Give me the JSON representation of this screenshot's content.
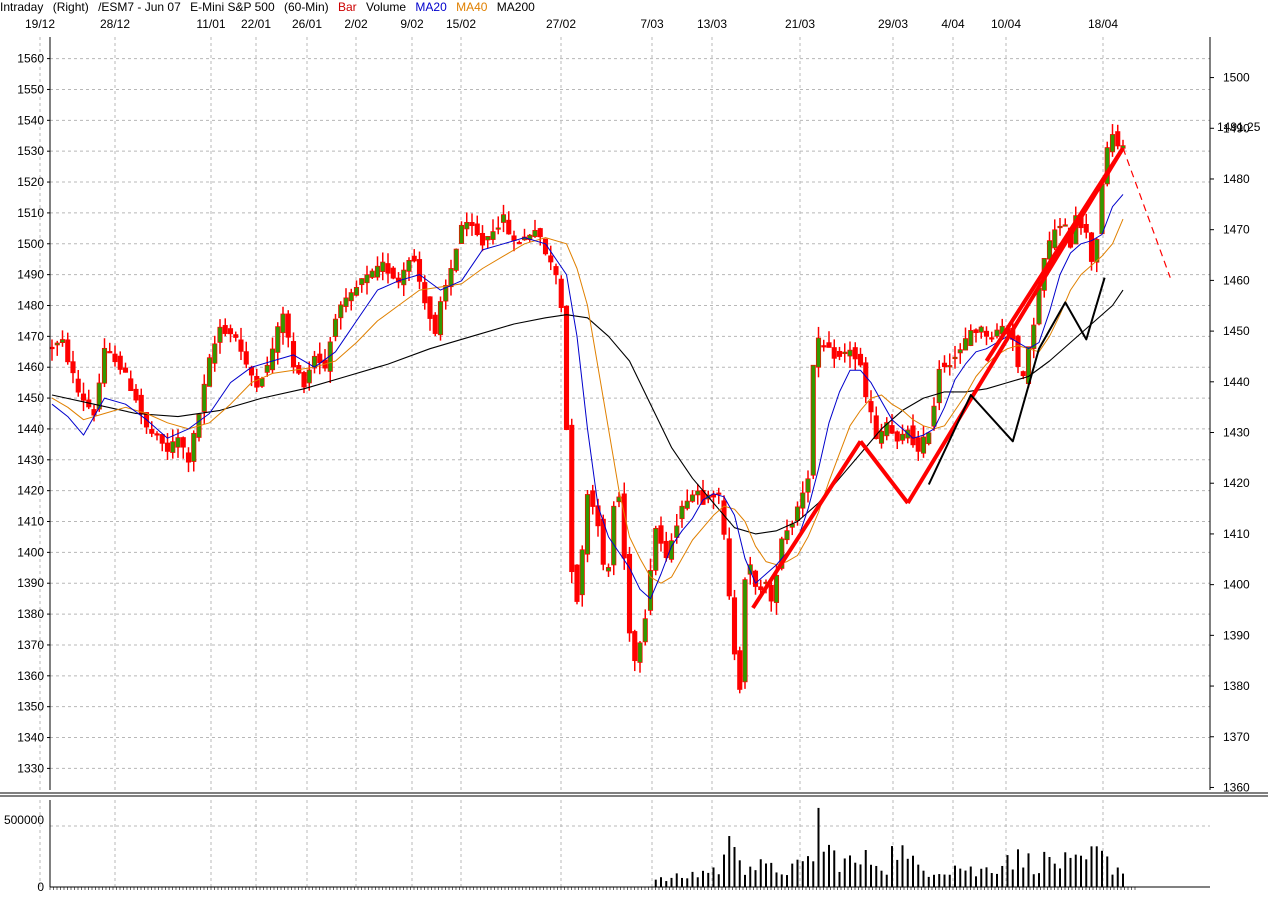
{
  "header": {
    "mode": "Intraday",
    "scale": "(Right)",
    "symbol": "/ESM7 - Jun 07",
    "name": "E-Mini S&P 500",
    "interval": "(60-Min)",
    "legend": [
      {
        "label": "Bar",
        "color": "#cc0000"
      },
      {
        "label": "Volume",
        "color": "#000000"
      },
      {
        "label": "MA20",
        "color": "#0000cc"
      },
      {
        "label": "MA40",
        "color": "#e08000"
      },
      {
        "label": "MA200",
        "color": "#000000"
      }
    ]
  },
  "chart_data": {
    "type": "candlestick",
    "date_labels": [
      "19/12",
      "28/12",
      "11/01",
      "22/01",
      "26/01",
      "2/02",
      "9/02",
      "15/02",
      "27/02",
      "7/03",
      "13/03",
      "21/03",
      "29/03",
      "4/04",
      "10/04",
      "18/04"
    ],
    "left_axis": {
      "ticks": [
        1560,
        1550,
        1540,
        1530,
        1520,
        1510,
        1500,
        1490,
        1480,
        1470,
        1460,
        1450,
        1440,
        1430,
        1420,
        1410,
        1400,
        1390,
        1380,
        1370,
        1360,
        1350,
        1340,
        1330
      ],
      "range": [
        1323,
        1567
      ]
    },
    "right_axis": {
      "ticks": [
        1500,
        1490,
        1480,
        1470,
        1460,
        1450,
        1440,
        1430,
        1420,
        1410,
        1400,
        1390,
        1380,
        1370,
        1360
      ],
      "range": [
        1359.5,
        1508
      ]
    },
    "last_price": "1491.25",
    "volume_axis": {
      "ticks": [
        "500000",
        "0"
      ],
      "max": 650000
    },
    "colors": {
      "up": "#339900",
      "down": "#ff0000",
      "ma20": "#0000cc",
      "ma40": "#e08000",
      "ma200": "#000000",
      "trend": "#ff0000",
      "pattern": "#000000",
      "grid": "#b8b8b8"
    },
    "price_path": [
      [
        0,
        1466
      ],
      [
        3,
        1468
      ],
      [
        6,
        1452
      ],
      [
        9,
        1445
      ],
      [
        11,
        1465
      ],
      [
        13,
        1463
      ],
      [
        15,
        1457
      ],
      [
        17,
        1450
      ],
      [
        19,
        1440
      ],
      [
        21,
        1437
      ],
      [
        23,
        1433
      ],
      [
        25,
        1437
      ],
      [
        27,
        1430
      ],
      [
        29,
        1445
      ],
      [
        31,
        1462
      ],
      [
        33,
        1473
      ],
      [
        36,
        1470
      ],
      [
        38,
        1460
      ],
      [
        40,
        1455
      ],
      [
        42,
        1460
      ],
      [
        45,
        1478
      ],
      [
        47,
        1460
      ],
      [
        49,
        1455
      ],
      [
        51,
        1464
      ],
      [
        53,
        1460
      ],
      [
        55,
        1477
      ],
      [
        58,
        1483
      ],
      [
        60,
        1488
      ],
      [
        62,
        1490
      ],
      [
        64,
        1493
      ],
      [
        67,
        1488
      ],
      [
        69,
        1496
      ],
      [
        70,
        1494
      ],
      [
        72,
        1482
      ],
      [
        74,
        1470
      ],
      [
        75,
        1480
      ],
      [
        77,
        1492
      ],
      [
        79,
        1506
      ],
      [
        81,
        1505
      ],
      [
        83,
        1500
      ],
      [
        85,
        1505
      ],
      [
        87,
        1508
      ],
      [
        89,
        1500
      ],
      [
        91,
        1502
      ],
      [
        93,
        1505
      ],
      [
        95,
        1497
      ],
      [
        97,
        1490
      ],
      [
        98,
        1480
      ],
      [
        99,
        1440
      ],
      [
        100,
        1395
      ],
      [
        101,
        1385
      ],
      [
        102,
        1400
      ],
      [
        103,
        1420
      ],
      [
        105,
        1410
      ],
      [
        106,
        1395
      ],
      [
        107,
        1395
      ],
      [
        108,
        1415
      ],
      [
        109,
        1418
      ],
      [
        110,
        1398
      ],
      [
        111,
        1375
      ],
      [
        112,
        1365
      ],
      [
        113,
        1372
      ],
      [
        114,
        1380
      ],
      [
        115,
        1395
      ],
      [
        116,
        1408
      ],
      [
        117,
        1403
      ],
      [
        118,
        1397
      ],
      [
        119,
        1405
      ],
      [
        120,
        1410
      ],
      [
        122,
        1418
      ],
      [
        124,
        1420
      ],
      [
        125,
        1417
      ],
      [
        126,
        1420
      ],
      [
        128,
        1418
      ],
      [
        129,
        1405
      ],
      [
        130,
        1385
      ],
      [
        131,
        1368
      ],
      [
        132,
        1357
      ],
      [
        133,
        1392
      ],
      [
        134,
        1395
      ],
      [
        135,
        1388
      ],
      [
        137,
        1390
      ],
      [
        138,
        1383
      ],
      [
        140,
        1405
      ],
      [
        142,
        1410
      ],
      [
        144,
        1420
      ],
      [
        145,
        1425
      ],
      [
        146,
        1460
      ],
      [
        147,
        1468
      ],
      [
        149,
        1465
      ],
      [
        151,
        1463
      ],
      [
        153,
        1466
      ],
      [
        155,
        1460
      ],
      [
        156,
        1450
      ],
      [
        157,
        1445
      ],
      [
        158,
        1436
      ],
      [
        160,
        1442
      ],
      [
        162,
        1435
      ],
      [
        164,
        1440
      ],
      [
        166,
        1432
      ],
      [
        168,
        1440
      ],
      [
        169,
        1448
      ],
      [
        170,
        1460
      ],
      [
        172,
        1462
      ],
      [
        174,
        1465
      ],
      [
        176,
        1472
      ],
      [
        178,
        1472
      ],
      [
        180,
        1470
      ],
      [
        182,
        1473
      ],
      [
        184,
        1470
      ],
      [
        185,
        1460
      ],
      [
        186,
        1456
      ],
      [
        188,
        1475
      ],
      [
        190,
        1495
      ],
      [
        192,
        1505
      ],
      [
        194,
        1505
      ],
      [
        195,
        1500
      ],
      [
        196,
        1510
      ],
      [
        198,
        1503
      ],
      [
        199,
        1495
      ],
      [
        200,
        1502
      ],
      [
        201,
        1520
      ],
      [
        202,
        1530
      ],
      [
        203,
        1535
      ],
      [
        204,
        1532
      ]
    ],
    "ma20_path": [
      [
        0,
        1448
      ],
      [
        3,
        1444
      ],
      [
        6,
        1438
      ],
      [
        10,
        1450
      ],
      [
        14,
        1448
      ],
      [
        18,
        1443
      ],
      [
        22,
        1437
      ],
      [
        26,
        1440
      ],
      [
        30,
        1445
      ],
      [
        34,
        1455
      ],
      [
        38,
        1460
      ],
      [
        42,
        1462
      ],
      [
        46,
        1464
      ],
      [
        50,
        1460
      ],
      [
        54,
        1465
      ],
      [
        58,
        1475
      ],
      [
        62,
        1485
      ],
      [
        66,
        1488
      ],
      [
        70,
        1490
      ],
      [
        74,
        1485
      ],
      [
        78,
        1488
      ],
      [
        82,
        1498
      ],
      [
        86,
        1500
      ],
      [
        90,
        1502
      ],
      [
        94,
        1500
      ],
      [
        98,
        1490
      ],
      [
        100,
        1470
      ],
      [
        102,
        1440
      ],
      [
        104,
        1415
      ],
      [
        106,
        1405
      ],
      [
        108,
        1400
      ],
      [
        110,
        1395
      ],
      [
        112,
        1388
      ],
      [
        114,
        1385
      ],
      [
        116,
        1393
      ],
      [
        118,
        1402
      ],
      [
        120,
        1407
      ],
      [
        122,
        1411
      ],
      [
        124,
        1417
      ],
      [
        126,
        1419
      ],
      [
        128,
        1418
      ],
      [
        130,
        1412
      ],
      [
        132,
        1398
      ],
      [
        134,
        1390
      ],
      [
        136,
        1393
      ],
      [
        138,
        1396
      ],
      [
        140,
        1400
      ],
      [
        142,
        1404
      ],
      [
        144,
        1414
      ],
      [
        146,
        1427
      ],
      [
        148,
        1442
      ],
      [
        150,
        1452
      ],
      [
        152,
        1459
      ],
      [
        154,
        1459
      ],
      [
        156,
        1455
      ],
      [
        158,
        1449
      ],
      [
        160,
        1443
      ],
      [
        162,
        1440
      ],
      [
        164,
        1437
      ],
      [
        166,
        1438
      ],
      [
        168,
        1440
      ],
      [
        170,
        1447
      ],
      [
        172,
        1456
      ],
      [
        174,
        1461
      ],
      [
        176,
        1465
      ],
      [
        178,
        1466
      ],
      [
        180,
        1468
      ],
      [
        182,
        1470
      ],
      [
        184,
        1468
      ],
      [
        186,
        1466
      ],
      [
        188,
        1468
      ],
      [
        190,
        1478
      ],
      [
        192,
        1490
      ],
      [
        194,
        1497
      ],
      [
        196,
        1500
      ],
      [
        198,
        1501
      ],
      [
        200,
        1503
      ],
      [
        202,
        1512
      ],
      [
        204,
        1516
      ]
    ],
    "ma40_path": [
      [
        0,
        1450
      ],
      [
        3,
        1447
      ],
      [
        6,
        1443
      ],
      [
        10,
        1445
      ],
      [
        14,
        1447
      ],
      [
        18,
        1445
      ],
      [
        22,
        1442
      ],
      [
        26,
        1440
      ],
      [
        30,
        1442
      ],
      [
        34,
        1448
      ],
      [
        38,
        1455
      ],
      [
        42,
        1458
      ],
      [
        46,
        1459
      ],
      [
        50,
        1460
      ],
      [
        54,
        1462
      ],
      [
        58,
        1468
      ],
      [
        62,
        1475
      ],
      [
        66,
        1480
      ],
      [
        70,
        1485
      ],
      [
        74,
        1486
      ],
      [
        78,
        1487
      ],
      [
        82,
        1492
      ],
      [
        86,
        1496
      ],
      [
        90,
        1500
      ],
      [
        94,
        1502
      ],
      [
        98,
        1500
      ],
      [
        100,
        1492
      ],
      [
        102,
        1480
      ],
      [
        104,
        1460
      ],
      [
        106,
        1440
      ],
      [
        108,
        1420
      ],
      [
        110,
        1405
      ],
      [
        112,
        1398
      ],
      [
        114,
        1392
      ],
      [
        116,
        1390
      ],
      [
        118,
        1392
      ],
      [
        120,
        1398
      ],
      [
        122,
        1404
      ],
      [
        124,
        1408
      ],
      [
        126,
        1412
      ],
      [
        128,
        1415
      ],
      [
        130,
        1414
      ],
      [
        132,
        1410
      ],
      [
        134,
        1402
      ],
      [
        136,
        1397
      ],
      [
        138,
        1396
      ],
      [
        140,
        1397
      ],
      [
        142,
        1399
      ],
      [
        144,
        1405
      ],
      [
        146,
        1413
      ],
      [
        148,
        1423
      ],
      [
        150,
        1432
      ],
      [
        152,
        1441
      ],
      [
        154,
        1446
      ],
      [
        156,
        1450
      ],
      [
        158,
        1451
      ],
      [
        160,
        1448
      ],
      [
        162,
        1446
      ],
      [
        164,
        1443
      ],
      [
        166,
        1441
      ],
      [
        168,
        1440
      ],
      [
        170,
        1441
      ],
      [
        172,
        1446
      ],
      [
        174,
        1451
      ],
      [
        176,
        1457
      ],
      [
        178,
        1461
      ],
      [
        180,
        1464
      ],
      [
        182,
        1466
      ],
      [
        184,
        1467
      ],
      [
        186,
        1466
      ],
      [
        188,
        1465
      ],
      [
        190,
        1470
      ],
      [
        192,
        1477
      ],
      [
        194,
        1485
      ],
      [
        196,
        1490
      ],
      [
        198,
        1493
      ],
      [
        200,
        1496
      ],
      [
        202,
        1500
      ],
      [
        204,
        1508
      ]
    ],
    "ma200_path": [
      [
        0,
        1451
      ],
      [
        8,
        1448
      ],
      [
        16,
        1445
      ],
      [
        24,
        1444
      ],
      [
        32,
        1446
      ],
      [
        40,
        1450
      ],
      [
        48,
        1453
      ],
      [
        56,
        1457
      ],
      [
        64,
        1461
      ],
      [
        72,
        1466
      ],
      [
        80,
        1470
      ],
      [
        88,
        1474
      ],
      [
        94,
        1476
      ],
      [
        98,
        1477
      ],
      [
        102,
        1476
      ],
      [
        106,
        1470
      ],
      [
        110,
        1462
      ],
      [
        114,
        1448
      ],
      [
        118,
        1434
      ],
      [
        122,
        1424
      ],
      [
        126,
        1416
      ],
      [
        130,
        1408
      ],
      [
        134,
        1406
      ],
      [
        138,
        1407
      ],
      [
        142,
        1410
      ],
      [
        146,
        1416
      ],
      [
        150,
        1424
      ],
      [
        154,
        1432
      ],
      [
        158,
        1440
      ],
      [
        162,
        1446
      ],
      [
        166,
        1450
      ],
      [
        170,
        1452
      ],
      [
        174,
        1452
      ],
      [
        178,
        1453
      ],
      [
        182,
        1455
      ],
      [
        186,
        1457
      ],
      [
        190,
        1462
      ],
      [
        194,
        1468
      ],
      [
        198,
        1474
      ],
      [
        202,
        1480
      ],
      [
        204,
        1485
      ]
    ],
    "trend_lines": [
      [
        [
          133.5,
          1382
        ],
        [
          154,
          1436
        ]
      ],
      [
        [
          154,
          1436
        ],
        [
          163,
          1416
        ]
      ],
      [
        [
          163,
          1416
        ],
        [
          204,
          1531
        ]
      ],
      [
        [
          178,
          1462
        ],
        [
          204,
          1531
        ]
      ]
    ],
    "forecast_line": [
      [
        204,
        1531
      ],
      [
        213,
        1489
      ]
    ],
    "pattern_lines": [
      [
        [
          167,
          1422
        ],
        [
          175,
          1451
        ],
        [
          183,
          1436
        ],
        [
          188,
          1466
        ],
        [
          193,
          1481
        ],
        [
          197,
          1469
        ],
        [
          200.5,
          1489
        ]
      ]
    ],
    "volume_profile": [
      [
        0,
        0
      ],
      [
        114,
        0
      ],
      [
        115,
        70000
      ],
      [
        118,
        95000
      ],
      [
        121,
        120000
      ],
      [
        124,
        165000
      ],
      [
        127,
        200000
      ],
      [
        129,
        420000
      ],
      [
        130,
        620000
      ],
      [
        132,
        240000
      ],
      [
        134,
        230000
      ],
      [
        137,
        190000
      ],
      [
        140,
        200000
      ],
      [
        143,
        215000
      ],
      [
        145,
        385000
      ],
      [
        146,
        760000
      ],
      [
        147,
        410000
      ],
      [
        150,
        310000
      ],
      [
        153,
        250000
      ],
      [
        156,
        310000
      ],
      [
        159,
        245000
      ],
      [
        161,
        470000
      ],
      [
        163,
        270000
      ],
      [
        166,
        200000
      ],
      [
        168,
        215000
      ],
      [
        170,
        200000
      ],
      [
        172,
        230000
      ],
      [
        174,
        215000
      ],
      [
        176,
        150000
      ],
      [
        178,
        200000
      ],
      [
        180,
        245000
      ],
      [
        182,
        350000
      ],
      [
        184,
        305000
      ],
      [
        187,
        265000
      ],
      [
        190,
        290000
      ],
      [
        193,
        260000
      ],
      [
        196,
        240000
      ],
      [
        199,
        365000
      ],
      [
        201,
        265000
      ],
      [
        204,
        190000
      ],
      [
        205,
        0
      ]
    ]
  }
}
